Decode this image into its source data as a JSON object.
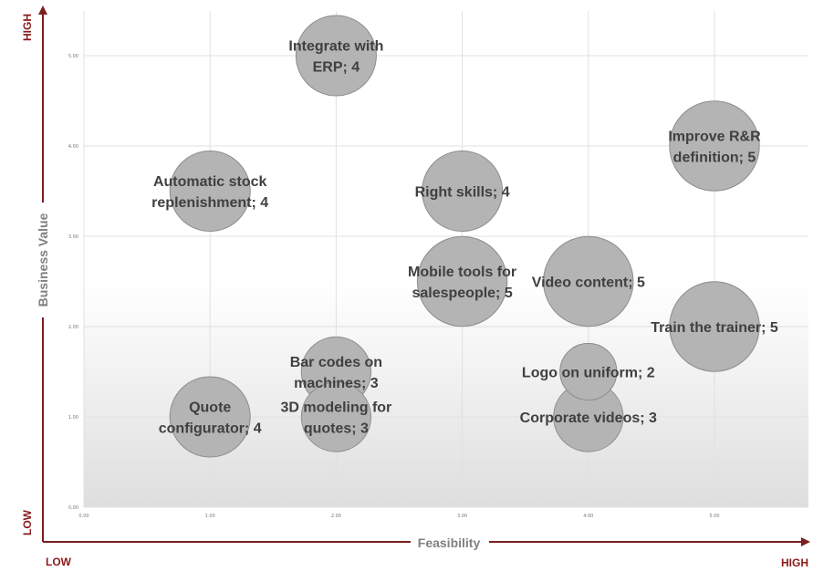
{
  "chart_data": {
    "type": "bubble",
    "xlabel": "Feasibility",
    "ylabel": "Business Value",
    "xlim": [
      0,
      5.75
    ],
    "ylim": [
      0,
      5.5
    ],
    "x_ticks": [
      "0.00",
      "1.00",
      "2.00",
      "3.00",
      "4.00",
      "5.00"
    ],
    "y_ticks": [
      "0.00",
      "1.00",
      "2.00",
      "3.00",
      "4.00",
      "5.00"
    ],
    "grid": true,
    "axis_corner_labels": {
      "x_low": "LOW",
      "x_high": "HIGH",
      "y_low": "LOW",
      "y_high": "HIGH"
    },
    "colors": {
      "bubble_fill": "#b4b4b4",
      "bubble_stroke": "#8c8c8c",
      "axis_arrow": "#7b1f1f",
      "corner_text": "#8b1a1a"
    },
    "points": [
      {
        "label": [
          "Integrate with",
          "ERP; 4"
        ],
        "x": 2,
        "y": 5,
        "size": 4
      },
      {
        "label": [
          "Improve R&R",
          "definition; 5"
        ],
        "x": 5,
        "y": 4,
        "size": 5
      },
      {
        "label": [
          "Automatic stock",
          "replenishment; 4"
        ],
        "x": 1,
        "y": 3.5,
        "size": 4
      },
      {
        "label": [
          "Right skills; 4"
        ],
        "x": 3,
        "y": 3.5,
        "size": 4
      },
      {
        "label": [
          "Mobile tools for",
          "salespeople; 5"
        ],
        "x": 3,
        "y": 2.5,
        "size": 5
      },
      {
        "label": [
          "Video content; 5"
        ],
        "x": 4,
        "y": 2.5,
        "size": 5
      },
      {
        "label": [
          "Train the trainer; 5"
        ],
        "x": 5,
        "y": 2,
        "size": 5
      },
      {
        "label": [
          "Bar codes on",
          "machines; 3"
        ],
        "x": 2,
        "y": 1.5,
        "size": 3
      },
      {
        "label": [
          "Logo on uniform; 2"
        ],
        "x": 4,
        "y": 1.5,
        "size": 2
      },
      {
        "label": [
          "Quote",
          "configurator; 4"
        ],
        "x": 1,
        "y": 1,
        "size": 4
      },
      {
        "label": [
          "3D modeling for",
          "quotes; 3"
        ],
        "x": 2,
        "y": 1,
        "size": 3
      },
      {
        "label": [
          "Corporate videos; 3"
        ],
        "x": 4,
        "y": 1,
        "size": 3
      }
    ]
  }
}
